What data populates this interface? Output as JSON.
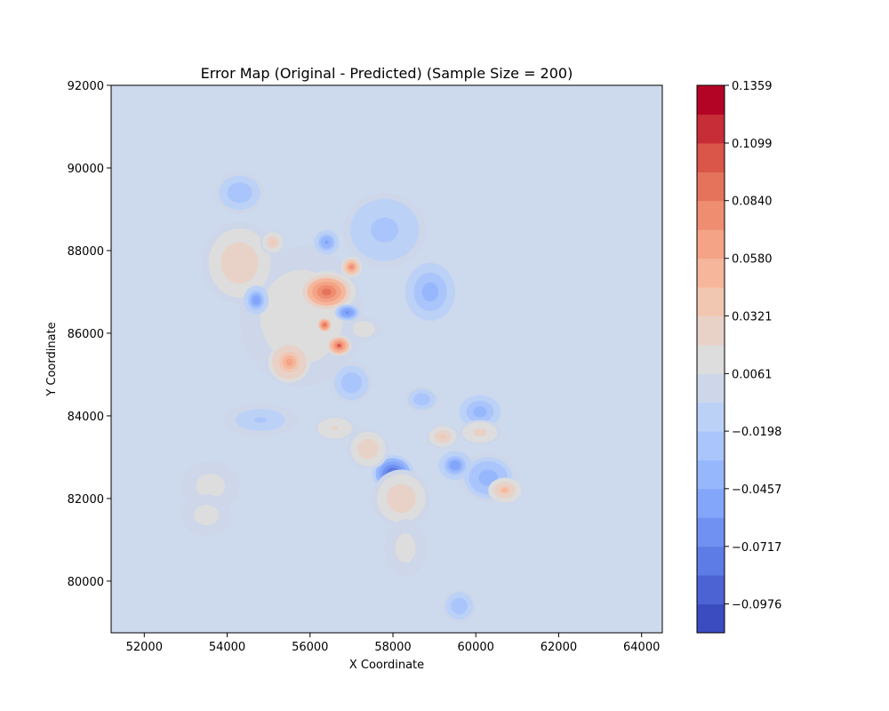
{
  "chart_data": {
    "type": "contour",
    "title": "Error Map (Original - Predicted) (Sample Size = 200)",
    "xlabel": "X Coordinate",
    "ylabel": "Y Coordinate",
    "xlim": [
      51200,
      64500
    ],
    "ylim": [
      78750,
      92000
    ],
    "xticks": [
      52000,
      54000,
      56000,
      58000,
      60000,
      62000,
      64000
    ],
    "yticks": [
      80000,
      82000,
      84000,
      86000,
      88000,
      90000,
      92000
    ],
    "colorbar": {
      "min": -0.1106,
      "max": 0.1359,
      "levels": [
        -0.1106,
        -0.0976,
        -0.0846,
        -0.0717,
        -0.0587,
        -0.0457,
        -0.0328,
        -0.0198,
        -0.0068,
        0.0061,
        0.0191,
        0.0321,
        0.045,
        0.058,
        0.071,
        0.084,
        0.0969,
        0.1099,
        0.1229,
        0.1359
      ],
      "tick_values": [
        -0.0976,
        -0.0717,
        -0.0457,
        -0.0198,
        0.0061,
        0.0321,
        0.058,
        0.084,
        0.1099,
        0.1359
      ],
      "tick_labels": [
        "−0.0976",
        "−0.0717",
        "−0.0457",
        "−0.0198",
        "0.0061",
        "0.0321",
        "0.0580",
        "0.0840",
        "0.1099",
        "0.1359"
      ],
      "colormap": "coolwarm"
    },
    "grid": false
  }
}
